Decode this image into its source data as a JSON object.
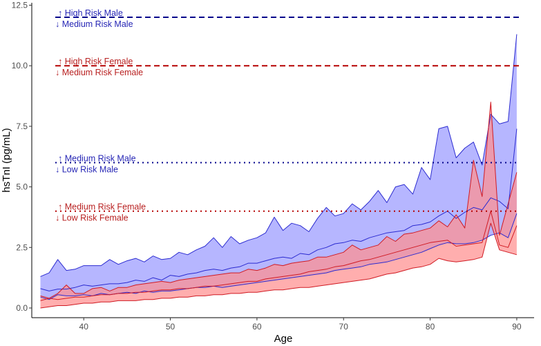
{
  "chart_data": {
    "type": "area",
    "xlabel": "Age",
    "ylabel": "hsTnI (pg/mL)",
    "xlim": [
      34,
      92
    ],
    "ylim": [
      -0.4,
      12.6
    ],
    "x_ticks": [
      40,
      50,
      60,
      70,
      80,
      90
    ],
    "y_ticks": [
      0.0,
      2.5,
      5.0,
      7.5,
      10.0,
      12.5
    ],
    "y_tick_labels": [
      "0.0",
      "2.5",
      "5.0",
      "7.5",
      "10.0",
      "12.5"
    ],
    "colors": {
      "male": "#2b2bd0",
      "male_fill": "#9a9aff",
      "female": "#d01a22",
      "female_fill": "#ff8f8f",
      "male_threshold": "#00008b",
      "female_threshold": "#b50000",
      "male_label": "#2626b5",
      "female_label": "#b82020"
    },
    "x": [
      35,
      36,
      37,
      38,
      39,
      40,
      41,
      42,
      43,
      44,
      45,
      46,
      47,
      48,
      49,
      50,
      51,
      52,
      53,
      54,
      55,
      56,
      57,
      58,
      59,
      60,
      61,
      62,
      63,
      64,
      65,
      66,
      67,
      68,
      69,
      70,
      71,
      72,
      73,
      74,
      75,
      76,
      77,
      78,
      79,
      80,
      81,
      82,
      83,
      84,
      85,
      86,
      87,
      88,
      89,
      90
    ],
    "series": [
      {
        "name": "Male",
        "upper": [
          1.3,
          1.45,
          2.0,
          1.55,
          1.6,
          1.75,
          1.75,
          1.75,
          2.0,
          1.8,
          1.95,
          2.05,
          1.9,
          2.15,
          2.0,
          2.05,
          2.3,
          2.2,
          2.4,
          2.55,
          2.9,
          2.5,
          2.95,
          2.65,
          2.8,
          2.9,
          3.1,
          3.75,
          3.2,
          3.5,
          3.4,
          3.15,
          3.7,
          4.15,
          3.8,
          3.9,
          4.3,
          4.05,
          4.4,
          4.85,
          4.35,
          5.0,
          5.1,
          4.7,
          5.8,
          5.3,
          7.4,
          7.5,
          6.2,
          6.6,
          6.85,
          5.9,
          8.0,
          7.6,
          7.7,
          11.3
        ],
        "median": [
          0.8,
          0.7,
          0.78,
          0.78,
          0.85,
          0.95,
          0.9,
          0.95,
          1.0,
          1.0,
          1.05,
          1.15,
          1.1,
          1.25,
          1.15,
          1.35,
          1.3,
          1.4,
          1.45,
          1.55,
          1.6,
          1.55,
          1.65,
          1.7,
          1.85,
          1.85,
          1.95,
          2.05,
          2.1,
          2.05,
          2.25,
          2.2,
          2.4,
          2.5,
          2.65,
          2.7,
          2.8,
          2.75,
          2.9,
          3.0,
          3.1,
          3.15,
          3.2,
          3.4,
          3.45,
          3.55,
          3.8,
          4.0,
          3.7,
          3.95,
          4.15,
          4.05,
          4.55,
          4.4,
          4.1,
          7.4
        ],
        "lower": [
          0.45,
          0.35,
          0.55,
          0.5,
          0.5,
          0.55,
          0.5,
          0.6,
          0.55,
          0.6,
          0.65,
          0.6,
          0.7,
          0.65,
          0.7,
          0.7,
          0.75,
          0.8,
          0.85,
          0.85,
          0.9,
          0.85,
          0.9,
          0.95,
          1.0,
          1.05,
          1.1,
          1.15,
          1.2,
          1.25,
          1.3,
          1.35,
          1.4,
          1.45,
          1.55,
          1.6,
          1.65,
          1.7,
          1.8,
          1.85,
          1.9,
          2.0,
          2.1,
          2.2,
          2.3,
          2.45,
          2.6,
          2.7,
          2.65,
          2.65,
          2.7,
          2.8,
          3.0,
          3.1,
          2.9,
          3.9
        ]
      },
      {
        "name": "Female",
        "upper": [
          0.5,
          0.4,
          0.6,
          0.95,
          0.6,
          0.6,
          0.8,
          0.85,
          0.7,
          0.85,
          0.85,
          0.95,
          1.0,
          1.05,
          1.1,
          1.05,
          1.15,
          1.2,
          1.25,
          1.3,
          1.35,
          1.4,
          1.45,
          1.45,
          1.6,
          1.55,
          1.65,
          1.8,
          1.75,
          1.85,
          1.9,
          1.95,
          2.1,
          2.1,
          2.2,
          2.3,
          2.6,
          2.4,
          2.5,
          2.6,
          2.95,
          2.75,
          3.05,
          3.1,
          3.2,
          3.3,
          3.6,
          3.35,
          3.85,
          3.3,
          6.1,
          4.6,
          8.5,
          3.0,
          4.3,
          5.6
        ],
        "median": [
          0.3,
          0.4,
          0.35,
          0.4,
          0.45,
          0.45,
          0.5,
          0.55,
          0.55,
          0.6,
          0.6,
          0.65,
          0.65,
          0.7,
          0.75,
          0.75,
          0.8,
          0.8,
          0.85,
          0.9,
          0.9,
          0.95,
          1.0,
          1.05,
          1.1,
          1.1,
          1.2,
          1.25,
          1.3,
          1.35,
          1.4,
          1.5,
          1.55,
          1.6,
          1.7,
          1.75,
          1.85,
          1.95,
          2.0,
          2.1,
          2.2,
          2.3,
          2.4,
          2.5,
          2.6,
          2.7,
          2.75,
          2.8,
          2.55,
          2.6,
          2.65,
          2.7,
          4.0,
          2.6,
          2.5,
          3.4
        ],
        "lower": [
          0.0,
          0.05,
          0.1,
          0.1,
          0.15,
          0.2,
          0.2,
          0.25,
          0.25,
          0.3,
          0.3,
          0.3,
          0.35,
          0.35,
          0.4,
          0.4,
          0.45,
          0.45,
          0.5,
          0.5,
          0.55,
          0.55,
          0.6,
          0.6,
          0.65,
          0.65,
          0.7,
          0.75,
          0.75,
          0.8,
          0.85,
          0.85,
          0.9,
          0.95,
          1.0,
          1.05,
          1.1,
          1.15,
          1.2,
          1.3,
          1.4,
          1.45,
          1.55,
          1.65,
          1.7,
          1.8,
          2.05,
          1.95,
          1.9,
          1.95,
          2.0,
          2.1,
          3.5,
          2.4,
          2.3,
          2.2
        ]
      }
    ],
    "thresholds": [
      {
        "name": "male-high-medium",
        "y": 12.0,
        "style": "dashed",
        "group": "male",
        "label_up": "↑ High Risk Male",
        "label_down": "↓ Medium Risk Male"
      },
      {
        "name": "female-high-medium",
        "y": 10.0,
        "style": "dashed",
        "group": "female",
        "label_up": "↑ High Risk Female",
        "label_down": "↓ Medium Risk Female"
      },
      {
        "name": "male-medium-low",
        "y": 6.0,
        "style": "dotted",
        "group": "male",
        "label_up": "↑ Medium Risk Male",
        "label_down": "↓ Low Risk Male"
      },
      {
        "name": "female-medium-low",
        "y": 4.0,
        "style": "dotted",
        "group": "female",
        "label_up": "↑ Medium Risk Female",
        "label_down": "↓ Low Risk Female"
      }
    ]
  }
}
